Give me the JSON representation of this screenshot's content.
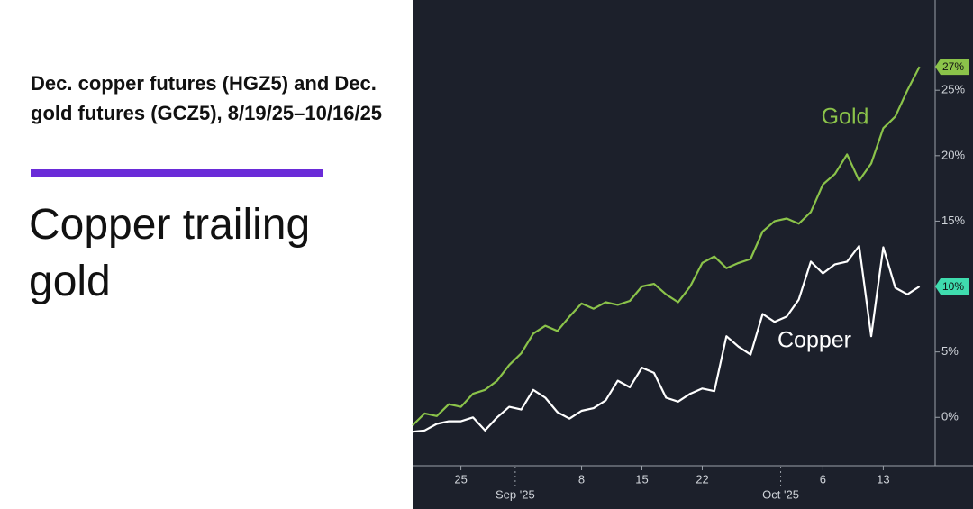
{
  "chart_data": {
    "type": "line",
    "subtitle": "Dec. copper futures (HGZ5) and Dec. gold futures (GCZ5), 8/19/25–10/16/25",
    "title": "Copper trailing gold",
    "x": [
      0,
      1,
      2,
      3,
      4,
      5,
      6,
      7,
      8,
      9,
      10,
      11,
      12,
      13,
      14,
      15,
      16,
      17,
      18,
      19,
      20,
      21,
      22,
      23,
      24,
      25,
      26,
      27,
      28,
      29,
      30,
      31,
      32,
      33,
      34,
      35,
      36,
      37,
      38,
      39,
      40,
      41,
      42
    ],
    "xlim": [
      0,
      43.3
    ],
    "xticks": [
      {
        "value": 4,
        "label": "25"
      },
      {
        "value": 14,
        "label": "8"
      },
      {
        "value": 19,
        "label": "15"
      },
      {
        "value": 24,
        "label": "22"
      },
      {
        "value": 34,
        "label": "6"
      },
      {
        "value": 39,
        "label": "13"
      }
    ],
    "xticks_month": [
      {
        "value": 8.5,
        "label": "Sep '25"
      },
      {
        "value": 30.5,
        "label": "Oct '25"
      }
    ],
    "ylim": [
      -3.7,
      31.9
    ],
    "yticks": [
      {
        "value": 0,
        "label": "0%"
      },
      {
        "value": 5,
        "label": "5%"
      },
      {
        "value": 10,
        "label": "10%"
      },
      {
        "value": 15,
        "label": "15%"
      },
      {
        "value": 20,
        "label": "20%"
      },
      {
        "value": 25,
        "label": "25%"
      }
    ],
    "series": [
      {
        "name": "Gold",
        "color": "#8bc34a",
        "last_value_label": "27%",
        "values": [
          -0.6,
          0.3,
          0.1,
          1.0,
          0.8,
          1.8,
          2.1,
          2.8,
          4.0,
          4.9,
          6.4,
          7.0,
          6.6,
          7.7,
          8.7,
          8.3,
          8.8,
          8.6,
          8.9,
          10.0,
          10.2,
          9.4,
          8.8,
          10.0,
          11.8,
          12.3,
          11.4,
          11.8,
          12.1,
          14.2,
          15.0,
          15.2,
          14.8,
          15.7,
          17.8,
          18.6,
          20.1,
          18.1,
          19.4,
          22.1,
          23.0,
          25.0,
          26.8
        ]
      },
      {
        "name": "Copper",
        "color": "#ffffff",
        "tag_color": "#3fdcae",
        "last_value_label": "10%",
        "values": [
          -1.1,
          -1.0,
          -0.5,
          -0.3,
          -0.3,
          0.0,
          -1.0,
          0.0,
          0.8,
          0.6,
          2.1,
          1.5,
          0.4,
          -0.1,
          0.5,
          0.7,
          1.3,
          2.8,
          2.3,
          3.8,
          3.4,
          1.5,
          1.2,
          1.8,
          2.2,
          2.0,
          6.2,
          5.4,
          4.8,
          7.9,
          7.3,
          7.7,
          9.0,
          11.9,
          11.0,
          11.7,
          11.9,
          13.1,
          6.2,
          13.0,
          9.9,
          9.4,
          10.0
        ]
      }
    ]
  }
}
